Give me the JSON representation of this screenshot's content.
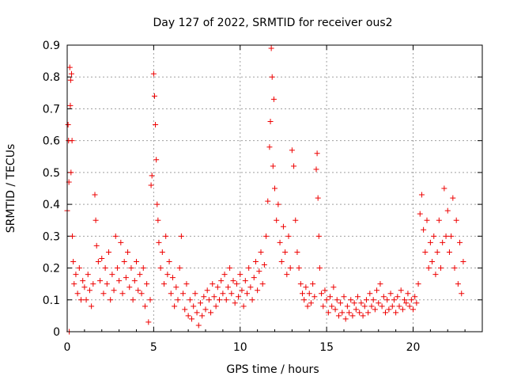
{
  "chart_data": {
    "type": "scatter",
    "title": "Day 127 of 2022, SRMTID for receiver ous2",
    "xlabel": "GPS time / hours",
    "ylabel": "SRMTID / TECUs",
    "xlim": [
      0,
      24
    ],
    "ylim": [
      0,
      0.9
    ],
    "xticks": [
      0,
      5,
      10,
      15,
      20
    ],
    "xtick_labels": [
      "0",
      "5",
      "10",
      "15",
      "20"
    ],
    "yticks": [
      0,
      0.1,
      0.2,
      0.3,
      0.4,
      0.5,
      0.6,
      0.7,
      0.8,
      0.9
    ],
    "ytick_labels": [
      "0",
      "0.1",
      "0.2",
      "0.3",
      "0.4",
      "0.5",
      "0.6",
      "0.7",
      "0.8",
      "0.9"
    ],
    "grid": true,
    "marker": "+",
    "series_color": "#ee0000",
    "series": [
      {
        "name": "SRMTID",
        "points": [
          [
            0.0,
            0.38
          ],
          [
            0.05,
            0.65
          ],
          [
            0.08,
            0.6
          ],
          [
            0.1,
            0.47
          ],
          [
            0.12,
            0.0
          ],
          [
            0.15,
            0.83
          ],
          [
            0.18,
            0.71
          ],
          [
            0.2,
            0.79
          ],
          [
            0.22,
            0.5
          ],
          [
            0.25,
            0.81
          ],
          [
            0.28,
            0.6
          ],
          [
            0.3,
            0.3
          ],
          [
            0.35,
            0.22
          ],
          [
            0.4,
            0.15
          ],
          [
            0.5,
            0.18
          ],
          [
            0.6,
            0.12
          ],
          [
            0.7,
            0.2
          ],
          [
            0.8,
            0.1
          ],
          [
            0.9,
            0.16
          ],
          [
            1.0,
            0.14
          ],
          [
            1.1,
            0.1
          ],
          [
            1.2,
            0.18
          ],
          [
            1.3,
            0.13
          ],
          [
            1.4,
            0.08
          ],
          [
            1.5,
            0.15
          ],
          [
            1.6,
            0.43
          ],
          [
            1.65,
            0.35
          ],
          [
            1.7,
            0.27
          ],
          [
            1.8,
            0.22
          ],
          [
            1.9,
            0.16
          ],
          [
            2.0,
            0.23
          ],
          [
            2.1,
            0.12
          ],
          [
            2.2,
            0.2
          ],
          [
            2.3,
            0.15
          ],
          [
            2.4,
            0.25
          ],
          [
            2.5,
            0.1
          ],
          [
            2.6,
            0.18
          ],
          [
            2.7,
            0.13
          ],
          [
            2.8,
            0.3
          ],
          [
            2.9,
            0.2
          ],
          [
            3.0,
            0.16
          ],
          [
            3.1,
            0.28
          ],
          [
            3.2,
            0.12
          ],
          [
            3.3,
            0.22
          ],
          [
            3.4,
            0.17
          ],
          [
            3.5,
            0.25
          ],
          [
            3.6,
            0.14
          ],
          [
            3.7,
            0.2
          ],
          [
            3.8,
            0.1
          ],
          [
            3.9,
            0.16
          ],
          [
            4.0,
            0.22
          ],
          [
            4.1,
            0.13
          ],
          [
            4.2,
            0.18
          ],
          [
            4.3,
            0.12
          ],
          [
            4.4,
            0.2
          ],
          [
            4.5,
            0.08
          ],
          [
            4.6,
            0.15
          ],
          [
            4.7,
            0.03
          ],
          [
            4.8,
            0.1
          ],
          [
            4.85,
            0.46
          ],
          [
            4.9,
            0.49
          ],
          [
            5.0,
            0.81
          ],
          [
            5.05,
            0.74
          ],
          [
            5.1,
            0.65
          ],
          [
            5.15,
            0.54
          ],
          [
            5.2,
            0.4
          ],
          [
            5.25,
            0.35
          ],
          [
            5.3,
            0.28
          ],
          [
            5.4,
            0.2
          ],
          [
            5.5,
            0.25
          ],
          [
            5.6,
            0.15
          ],
          [
            5.7,
            0.3
          ],
          [
            5.8,
            0.18
          ],
          [
            5.9,
            0.22
          ],
          [
            6.0,
            0.12
          ],
          [
            6.1,
            0.17
          ],
          [
            6.2,
            0.08
          ],
          [
            6.3,
            0.14
          ],
          [
            6.4,
            0.1
          ],
          [
            6.5,
            0.2
          ],
          [
            6.6,
            0.3
          ],
          [
            6.7,
            0.12
          ],
          [
            6.8,
            0.07
          ],
          [
            6.9,
            0.15
          ],
          [
            7.0,
            0.05
          ],
          [
            7.1,
            0.1
          ],
          [
            7.2,
            0.04
          ],
          [
            7.3,
            0.08
          ],
          [
            7.4,
            0.12
          ],
          [
            7.5,
            0.06
          ],
          [
            7.6,
            0.02
          ],
          [
            7.7,
            0.09
          ],
          [
            7.8,
            0.05
          ],
          [
            7.9,
            0.11
          ],
          [
            8.0,
            0.07
          ],
          [
            8.1,
            0.13
          ],
          [
            8.2,
            0.1
          ],
          [
            8.3,
            0.06
          ],
          [
            8.4,
            0.15
          ],
          [
            8.5,
            0.11
          ],
          [
            8.6,
            0.08
          ],
          [
            8.7,
            0.14
          ],
          [
            8.8,
            0.1
          ],
          [
            8.9,
            0.16
          ],
          [
            9.0,
            0.12
          ],
          [
            9.1,
            0.18
          ],
          [
            9.2,
            0.1
          ],
          [
            9.3,
            0.14
          ],
          [
            9.4,
            0.2
          ],
          [
            9.5,
            0.12
          ],
          [
            9.6,
            0.16
          ],
          [
            9.7,
            0.09
          ],
          [
            9.8,
            0.15
          ],
          [
            9.9,
            0.11
          ],
          [
            10.0,
            0.18
          ],
          [
            10.1,
            0.13
          ],
          [
            10.2,
            0.08
          ],
          [
            10.3,
            0.16
          ],
          [
            10.4,
            0.12
          ],
          [
            10.5,
            0.2
          ],
          [
            10.6,
            0.14
          ],
          [
            10.7,
            0.1
          ],
          [
            10.8,
            0.17
          ],
          [
            10.9,
            0.22
          ],
          [
            11.0,
            0.13
          ],
          [
            11.1,
            0.19
          ],
          [
            11.2,
            0.25
          ],
          [
            11.3,
            0.15
          ],
          [
            11.4,
            0.21
          ],
          [
            11.5,
            0.3
          ],
          [
            11.6,
            0.41
          ],
          [
            11.7,
            0.58
          ],
          [
            11.75,
            0.66
          ],
          [
            11.8,
            0.89
          ],
          [
            11.85,
            0.8
          ],
          [
            11.9,
            0.52
          ],
          [
            11.95,
            0.73
          ],
          [
            12.0,
            0.45
          ],
          [
            12.1,
            0.35
          ],
          [
            12.2,
            0.4
          ],
          [
            12.3,
            0.28
          ],
          [
            12.4,
            0.22
          ],
          [
            12.5,
            0.33
          ],
          [
            12.6,
            0.25
          ],
          [
            12.7,
            0.18
          ],
          [
            12.8,
            0.3
          ],
          [
            12.9,
            0.2
          ],
          [
            13.0,
            0.57
          ],
          [
            13.1,
            0.52
          ],
          [
            13.2,
            0.35
          ],
          [
            13.3,
            0.25
          ],
          [
            13.4,
            0.2
          ],
          [
            13.5,
            0.15
          ],
          [
            13.6,
            0.12
          ],
          [
            13.7,
            0.1
          ],
          [
            13.8,
            0.14
          ],
          [
            13.9,
            0.08
          ],
          [
            14.0,
            0.12
          ],
          [
            14.1,
            0.09
          ],
          [
            14.2,
            0.15
          ],
          [
            14.3,
            0.11
          ],
          [
            14.4,
            0.51
          ],
          [
            14.45,
            0.56
          ],
          [
            14.5,
            0.42
          ],
          [
            14.55,
            0.3
          ],
          [
            14.6,
            0.2
          ],
          [
            14.7,
            0.12
          ],
          [
            14.8,
            0.08
          ],
          [
            14.9,
            0.13
          ],
          [
            15.0,
            0.1
          ],
          [
            15.1,
            0.06
          ],
          [
            15.2,
            0.11
          ],
          [
            15.3,
            0.08
          ],
          [
            15.4,
            0.14
          ],
          [
            15.5,
            0.07
          ],
          [
            15.6,
            0.1
          ],
          [
            15.7,
            0.05
          ],
          [
            15.8,
            0.09
          ],
          [
            15.9,
            0.06
          ],
          [
            16.0,
            0.11
          ],
          [
            16.1,
            0.04
          ],
          [
            16.2,
            0.08
          ],
          [
            16.3,
            0.06
          ],
          [
            16.4,
            0.1
          ],
          [
            16.5,
            0.05
          ],
          [
            16.6,
            0.09
          ],
          [
            16.7,
            0.07
          ],
          [
            16.8,
            0.11
          ],
          [
            16.9,
            0.06
          ],
          [
            17.0,
            0.09
          ],
          [
            17.1,
            0.05
          ],
          [
            17.2,
            0.08
          ],
          [
            17.3,
            0.1
          ],
          [
            17.4,
            0.06
          ],
          [
            17.5,
            0.12
          ],
          [
            17.6,
            0.08
          ],
          [
            17.7,
            0.1
          ],
          [
            17.8,
            0.07
          ],
          [
            17.9,
            0.13
          ],
          [
            18.0,
            0.09
          ],
          [
            18.1,
            0.15
          ],
          [
            18.2,
            0.08
          ],
          [
            18.3,
            0.11
          ],
          [
            18.4,
            0.06
          ],
          [
            18.5,
            0.1
          ],
          [
            18.6,
            0.07
          ],
          [
            18.7,
            0.12
          ],
          [
            18.8,
            0.08
          ],
          [
            18.9,
            0.1
          ],
          [
            19.0,
            0.06
          ],
          [
            19.1,
            0.11
          ],
          [
            19.2,
            0.08
          ],
          [
            19.3,
            0.13
          ],
          [
            19.4,
            0.07
          ],
          [
            19.5,
            0.1
          ],
          [
            19.6,
            0.09
          ],
          [
            19.7,
            0.12
          ],
          [
            19.8,
            0.08
          ],
          [
            19.9,
            0.1
          ],
          [
            20.0,
            0.07
          ],
          [
            20.1,
            0.11
          ],
          [
            20.2,
            0.09
          ],
          [
            20.3,
            0.15
          ],
          [
            20.4,
            0.37
          ],
          [
            20.5,
            0.43
          ],
          [
            20.6,
            0.32
          ],
          [
            20.7,
            0.25
          ],
          [
            20.8,
            0.35
          ],
          [
            20.9,
            0.2
          ],
          [
            21.0,
            0.28
          ],
          [
            21.1,
            0.22
          ],
          [
            21.2,
            0.3
          ],
          [
            21.3,
            0.18
          ],
          [
            21.4,
            0.25
          ],
          [
            21.5,
            0.35
          ],
          [
            21.6,
            0.2
          ],
          [
            21.7,
            0.28
          ],
          [
            21.8,
            0.45
          ],
          [
            21.9,
            0.3
          ],
          [
            22.0,
            0.38
          ],
          [
            22.1,
            0.25
          ],
          [
            22.2,
            0.3
          ],
          [
            22.3,
            0.42
          ],
          [
            22.4,
            0.2
          ],
          [
            22.5,
            0.35
          ],
          [
            22.6,
            0.15
          ],
          [
            22.7,
            0.28
          ],
          [
            22.8,
            0.12
          ],
          [
            22.9,
            0.22
          ]
        ]
      }
    ]
  }
}
